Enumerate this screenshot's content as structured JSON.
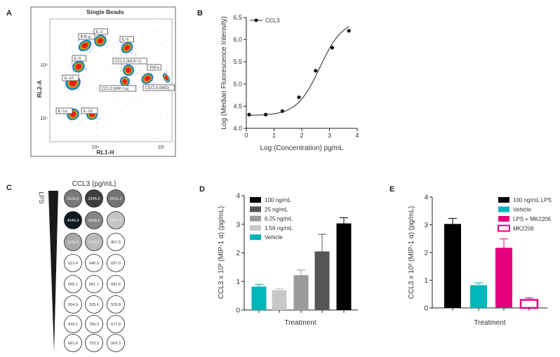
{
  "panels": {
    "A": {
      "label": "A",
      "title": "Single Beads",
      "xlabel": "RL1-H",
      "ylabel": "RL2-A",
      "xticks": [
        "10⁶",
        "10⁷"
      ],
      "yticks": [
        "10⁶",
        "10⁵"
      ],
      "populations": [
        "IFN-g",
        "IL-2",
        "IL-6",
        "IL-5",
        "IL-10",
        "CCL2 (MCP-1)",
        "TNFa",
        "CCL3 (MIP-1a)",
        "CSCL9 (MIG)",
        "IL-1a",
        "IL-1β"
      ]
    },
    "B": {
      "label": "B"
    },
    "C": {
      "label": "C",
      "title": "CCL3 (pg/mL)",
      "gradient_label": "LPS",
      "grid": [
        [
          "3103.5",
          "3345.0",
          "2631.1"
        ],
        [
          "4545.0",
          "2668.6",
          "1407.0"
        ],
        [
          "1470.3",
          "1333.2",
          "867.9"
        ],
        [
          "612.4",
          "640.0",
          "657.0"
        ],
        [
          "505.1",
          "681.1",
          "581.6"
        ],
        [
          "554.9",
          "525.6",
          "529.8"
        ],
        [
          "833.1",
          "756.2",
          "577.9"
        ],
        [
          "661.6",
          "722.2",
          "563.3"
        ]
      ]
    },
    "D": {
      "label": "D"
    },
    "E": {
      "label": "E"
    }
  },
  "chart_data": [
    {
      "panel": "B",
      "type": "line",
      "xlabel": "Log (Concentration) pg/mL",
      "ylabel": "Log (Median Fluorescence Intensity)",
      "xlim": [
        0,
        4
      ],
      "ylim": [
        4.0,
        6.5
      ],
      "xticks": [
        "0",
        "1",
        "2",
        "3",
        "4"
      ],
      "yticks": [
        "4.0",
        "4.5",
        "5.0",
        "5.5",
        "6.0",
        "6.5"
      ],
      "legend": "top-left",
      "series": [
        {
          "name": "CCL3",
          "x": [
            0.1,
            0.7,
            1.3,
            1.9,
            2.5,
            3.1,
            3.7
          ],
          "y": [
            4.31,
            4.31,
            4.39,
            4.7,
            5.3,
            5.82,
            6.2
          ]
        }
      ]
    },
    {
      "panel": "D",
      "type": "bar",
      "xlabel": "Treatment",
      "ylabel": "CCL3 x 10³ (MIP-1 α) (pg/mL)",
      "ylim": [
        0,
        4
      ],
      "yticks": [
        "0",
        "1",
        "2",
        "3",
        "4"
      ],
      "legend": "top-left",
      "categories": [
        "Vehicle",
        "1.56 ng/mL",
        "6.25 ng/mL",
        "25 ng/mL",
        "100 ng/mL"
      ],
      "values": [
        0.82,
        0.7,
        1.22,
        2.05,
        3.03
      ],
      "errors": [
        0.08,
        0.05,
        0.18,
        0.6,
        0.2
      ],
      "colors": [
        "#00b5b8",
        "#c8c8c8",
        "#9a9a9a",
        "#555555",
        "#000000"
      ],
      "legend_order": [
        4,
        3,
        2,
        1,
        0
      ]
    },
    {
      "panel": "E",
      "type": "bar",
      "xlabel": "Treatment",
      "ylabel": "CCL3 x 10³ (MIP-1 α) (pg/mL)",
      "ylim": [
        0,
        4
      ],
      "yticks": [
        "0",
        "1",
        "2",
        "3",
        "4"
      ],
      "legend": "top-right",
      "categories": [
        "100 ng/mL LPS",
        "Vehicle",
        "LPS + MK2206",
        "MK2206"
      ],
      "values": [
        3.03,
        0.82,
        2.17,
        0.29
      ],
      "errors": [
        0.2,
        0.08,
        0.32,
        0.07
      ],
      "colors": [
        "#000000",
        "#00b5b8",
        "#e6007e",
        "#ffffff"
      ],
      "outline": [
        "#000000",
        "#00b5b8",
        "#e6007e",
        "#e6007e"
      ],
      "legend_order": [
        0,
        1,
        2,
        3
      ]
    }
  ]
}
